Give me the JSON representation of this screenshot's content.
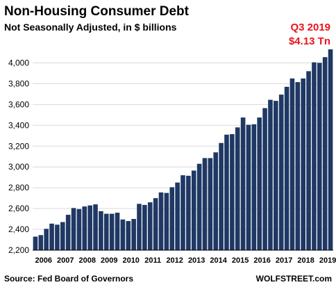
{
  "chart_data": {
    "type": "bar",
    "title": "Non-Housing  Consumer  Debt",
    "subtitle": "Not Seasonally Adjusted, in $ billions",
    "annotation": {
      "line1": "Q3 2019",
      "line2": "$4.13 Tn"
    },
    "source": "Source: Fed Board of Governors",
    "brand": "WOLFSTREET.com",
    "bar_color": "#1f3864",
    "annotation_color": "#e8141c",
    "ylim": [
      2200,
      4150
    ],
    "y_ticks": [
      2200,
      2400,
      2600,
      2800,
      3000,
      3200,
      3400,
      3600,
      3800,
      4000
    ],
    "y_tick_labels": [
      "2,200",
      "2,400",
      "2,600",
      "2,800",
      "3,000",
      "3,200",
      "3,400",
      "3,600",
      "3,800",
      "4,000"
    ],
    "x_year_labels": [
      "2006",
      "2007",
      "2008",
      "2009",
      "2010",
      "2011",
      "2012",
      "2013",
      "2014",
      "2015",
      "2016",
      "2017",
      "2018",
      "2019"
    ],
    "grid": true,
    "categories": [
      "2006 Q1",
      "2006 Q2",
      "2006 Q3",
      "2006 Q4",
      "2007 Q1",
      "2007 Q2",
      "2007 Q3",
      "2007 Q4",
      "2008 Q1",
      "2008 Q2",
      "2008 Q3",
      "2008 Q4",
      "2009 Q1",
      "2009 Q2",
      "2009 Q3",
      "2009 Q4",
      "2010 Q1",
      "2010 Q2",
      "2010 Q3",
      "2010 Q4",
      "2011 Q1",
      "2011 Q2",
      "2011 Q3",
      "2011 Q4",
      "2012 Q1",
      "2012 Q2",
      "2012 Q3",
      "2012 Q4",
      "2013 Q1",
      "2013 Q2",
      "2013 Q3",
      "2013 Q4",
      "2014 Q1",
      "2014 Q2",
      "2014 Q3",
      "2014 Q4",
      "2015 Q1",
      "2015 Q2",
      "2015 Q3",
      "2015 Q4",
      "2016 Q1",
      "2016 Q2",
      "2016 Q3",
      "2016 Q4",
      "2017 Q1",
      "2017 Q2",
      "2017 Q3",
      "2017 Q4",
      "2018 Q1",
      "2018 Q2",
      "2018 Q3",
      "2018 Q4",
      "2019 Q1",
      "2019 Q2",
      "2019 Q3"
    ],
    "values": [
      2330,
      2345,
      2405,
      2455,
      2445,
      2470,
      2540,
      2605,
      2595,
      2620,
      2630,
      2640,
      2575,
      2550,
      2550,
      2560,
      2495,
      2480,
      2500,
      2645,
      2635,
      2660,
      2700,
      2755,
      2750,
      2805,
      2850,
      2920,
      2915,
      2965,
      3030,
      3085,
      3085,
      3140,
      3230,
      3310,
      3315,
      3380,
      3475,
      3405,
      3410,
      3475,
      3565,
      3645,
      3635,
      3695,
      3770,
      3850,
      3815,
      3850,
      3920,
      4005,
      4000,
      4055,
      4130
    ]
  }
}
